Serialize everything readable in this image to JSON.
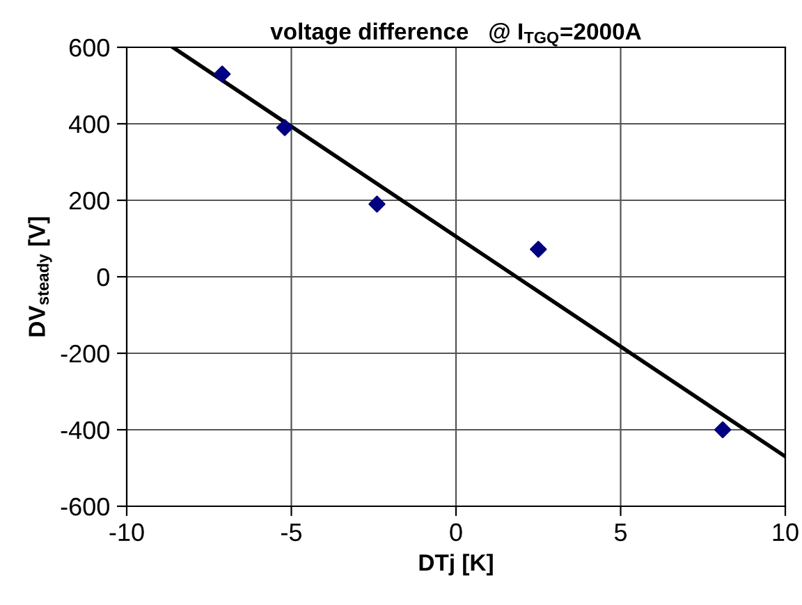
{
  "chart_data": {
    "type": "scatter",
    "title": "voltage difference   @ I$_{TGQ}$=2000A",
    "xlabel": "DTj [K]",
    "ylabel": "DV$_{steady}$ [V]",
    "series": [
      {
        "color": "#000080",
        "marker": "diamond",
        "x": [
          -7.1,
          -5.2,
          -2.4,
          2.5,
          8.1
        ],
        "values": [
          530,
          390,
          190,
          72,
          -400
        ]
      },
      {
        "type": "line",
        "color": "#000000",
        "marker": "none",
        "line_style": "solid",
        "x": [
          -8.6,
          10
        ],
        "values": [
          600,
          -470
        ]
      }
    ],
    "xlim": [
      -10,
      10
    ],
    "xticks": [
      -10,
      -5,
      0,
      5,
      10
    ],
    "ylim": [
      -600,
      600
    ],
    "yticks": [
      -600,
      -400,
      -200,
      0,
      200,
      400,
      600
    ],
    "grid": true,
    "legend": false
  }
}
